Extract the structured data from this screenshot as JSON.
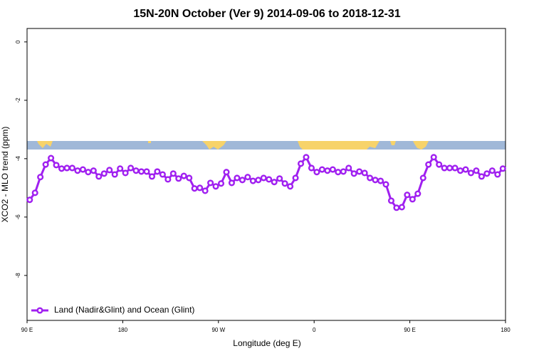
{
  "chart_data": {
    "type": "line",
    "title": "15N-20N October (Ver 9)   2014-09-06 to 2018-12-31",
    "x_label": "Longitude (deg E)",
    "y_label": "XCO2 - MLO trend (ppm)",
    "xlim": [
      90,
      540
    ],
    "xticks": [
      {
        "value": 90,
        "label": "90 E"
      },
      {
        "value": 180,
        "label": "180"
      },
      {
        "value": 270,
        "label": "90 W"
      },
      {
        "value": 360,
        "label": "0"
      },
      {
        "value": 450,
        "label": "90 E"
      },
      {
        "value": 540,
        "label": "180"
      }
    ],
    "ylim": [
      -9.54,
      0.46
    ],
    "yticks": [
      0,
      -2,
      -4,
      -6,
      -8
    ],
    "legend": "bottom-left",
    "x": [
      92.5,
      97.5,
      102.5,
      107.5,
      112.5,
      117.5,
      122.5,
      127.5,
      132.5,
      137.5,
      142.5,
      147.5,
      152.5,
      157.5,
      162.5,
      167.5,
      172.5,
      177.5,
      182.5,
      187.5,
      192.5,
      197.5,
      202.5,
      207.5,
      212.5,
      217.5,
      222.5,
      227.5,
      232.5,
      237.5,
      242.5,
      247.5,
      252.5,
      257.5,
      262.5,
      267.5,
      272.5,
      277.5,
      282.5,
      287.5,
      292.5,
      297.5,
      302.5,
      307.5,
      312.5,
      317.5,
      322.5,
      327.5,
      332.5,
      337.5,
      342.5,
      347.5,
      352.5,
      357.5,
      362.5,
      367.5,
      372.5,
      377.5,
      382.5,
      387.5,
      392.5,
      397.5,
      402.5,
      407.5,
      412.5,
      417.5,
      422.5,
      427.5,
      432.5,
      437.5,
      442.5,
      447.5,
      452.5,
      457.5,
      462.5,
      467.5,
      472.5,
      477.5,
      482.5,
      487.5,
      492.5,
      497.5,
      502.5,
      507.5,
      512.5,
      517.5,
      522.5,
      527.5,
      532.5,
      537.5
    ],
    "series": [
      {
        "name": "Land (Nadir&Glint) and Ocean (Glint)",
        "color": "#a020f0",
        "values": [
          -5.41,
          -5.17,
          -4.63,
          -4.2,
          -3.98,
          -4.22,
          -4.34,
          -4.32,
          -4.32,
          -4.41,
          -4.37,
          -4.46,
          -4.41,
          -4.61,
          -4.51,
          -4.39,
          -4.54,
          -4.34,
          -4.49,
          -4.32,
          -4.41,
          -4.44,
          -4.44,
          -4.61,
          -4.44,
          -4.54,
          -4.71,
          -4.51,
          -4.68,
          -4.59,
          -4.66,
          -5.02,
          -5.0,
          -5.1,
          -4.83,
          -4.95,
          -4.85,
          -4.46,
          -4.83,
          -4.66,
          -4.73,
          -4.63,
          -4.76,
          -4.73,
          -4.66,
          -4.71,
          -4.8,
          -4.68,
          -4.85,
          -4.95,
          -4.66,
          -4.17,
          -3.95,
          -4.32,
          -4.46,
          -4.37,
          -4.41,
          -4.37,
          -4.46,
          -4.44,
          -4.32,
          -4.51,
          -4.44,
          -4.49,
          -4.66,
          -4.73,
          -4.76,
          -4.88,
          -5.44,
          -5.68,
          -5.66,
          -5.24,
          -5.39,
          -5.2,
          -4.66,
          -4.2,
          -3.95,
          -4.2,
          -4.32,
          -4.32,
          -4.32,
          -4.41,
          -4.37,
          -4.49,
          -4.41,
          -4.61,
          -4.51,
          -4.41,
          -4.54,
          -4.34
        ]
      }
    ]
  }
}
